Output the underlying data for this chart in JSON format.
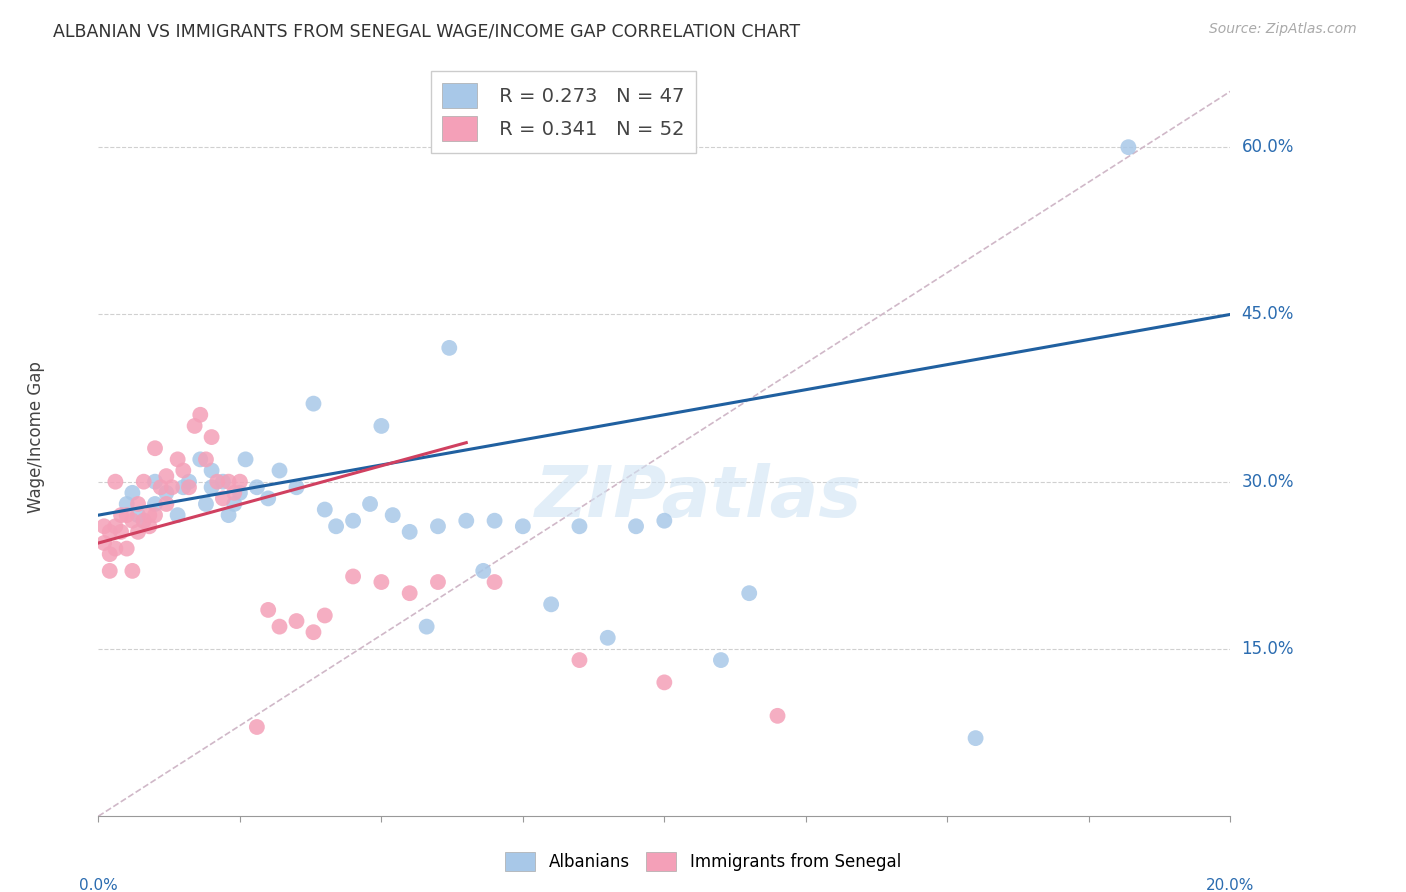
{
  "title": "ALBANIAN VS IMMIGRANTS FROM SENEGAL WAGE/INCOME GAP CORRELATION CHART",
  "source": "Source: ZipAtlas.com",
  "ylabel": "Wage/Income Gap",
  "ytick_vals": [
    0.6,
    0.45,
    0.3,
    0.15
  ],
  "ytick_labels": [
    "60.0%",
    "45.0%",
    "30.0%",
    "15.0%"
  ],
  "xmin": 0.0,
  "xmax": 0.2,
  "ymin": 0.0,
  "ymax": 0.68,
  "watermark": "ZIPatlas",
  "scatter_albanian_color": "#a8c8e8",
  "scatter_senegal_color": "#f4a0b8",
  "trendline_albanian_color": "#2060a0",
  "trendline_senegal_color": "#d04060",
  "diagonal_color": "#d0b8c8",
  "albanian_x": [
    0.005,
    0.006,
    0.007,
    0.008,
    0.01,
    0.01,
    0.012,
    0.014,
    0.015,
    0.016,
    0.018,
    0.019,
    0.02,
    0.02,
    0.022,
    0.023,
    0.024,
    0.025,
    0.026,
    0.028,
    0.03,
    0.032,
    0.035,
    0.038,
    0.04,
    0.042,
    0.045,
    0.048,
    0.05,
    0.052,
    0.055,
    0.058,
    0.06,
    0.062,
    0.065,
    0.068,
    0.07,
    0.075,
    0.08,
    0.085,
    0.09,
    0.095,
    0.1,
    0.11,
    0.115,
    0.155,
    0.182
  ],
  "albanian_y": [
    0.28,
    0.29,
    0.27,
    0.265,
    0.28,
    0.3,
    0.29,
    0.27,
    0.295,
    0.3,
    0.32,
    0.28,
    0.295,
    0.31,
    0.3,
    0.27,
    0.28,
    0.29,
    0.32,
    0.295,
    0.285,
    0.31,
    0.295,
    0.37,
    0.275,
    0.26,
    0.265,
    0.28,
    0.35,
    0.27,
    0.255,
    0.17,
    0.26,
    0.42,
    0.265,
    0.22,
    0.265,
    0.26,
    0.19,
    0.26,
    0.16,
    0.26,
    0.265,
    0.14,
    0.2,
    0.07,
    0.6
  ],
  "senegal_x": [
    0.001,
    0.001,
    0.002,
    0.002,
    0.002,
    0.003,
    0.003,
    0.003,
    0.004,
    0.004,
    0.005,
    0.005,
    0.006,
    0.006,
    0.007,
    0.007,
    0.008,
    0.008,
    0.009,
    0.009,
    0.01,
    0.01,
    0.011,
    0.012,
    0.012,
    0.013,
    0.014,
    0.015,
    0.016,
    0.017,
    0.018,
    0.019,
    0.02,
    0.021,
    0.022,
    0.023,
    0.024,
    0.025,
    0.028,
    0.03,
    0.032,
    0.035,
    0.038,
    0.04,
    0.045,
    0.05,
    0.055,
    0.06,
    0.07,
    0.085,
    0.1,
    0.12
  ],
  "senegal_y": [
    0.245,
    0.26,
    0.255,
    0.235,
    0.22,
    0.26,
    0.24,
    0.3,
    0.255,
    0.27,
    0.24,
    0.27,
    0.22,
    0.265,
    0.255,
    0.28,
    0.265,
    0.3,
    0.27,
    0.26,
    0.27,
    0.33,
    0.295,
    0.305,
    0.28,
    0.295,
    0.32,
    0.31,
    0.295,
    0.35,
    0.36,
    0.32,
    0.34,
    0.3,
    0.285,
    0.3,
    0.29,
    0.3,
    0.08,
    0.185,
    0.17,
    0.175,
    0.165,
    0.18,
    0.215,
    0.21,
    0.2,
    0.21,
    0.21,
    0.14,
    0.12,
    0.09
  ],
  "trendline_alb_x0": 0.0,
  "trendline_alb_x1": 0.2,
  "trendline_alb_y0": 0.27,
  "trendline_alb_y1": 0.45,
  "trendline_sen_x0": 0.0,
  "trendline_sen_x1": 0.065,
  "trendline_sen_y0": 0.245,
  "trendline_sen_y1": 0.335
}
